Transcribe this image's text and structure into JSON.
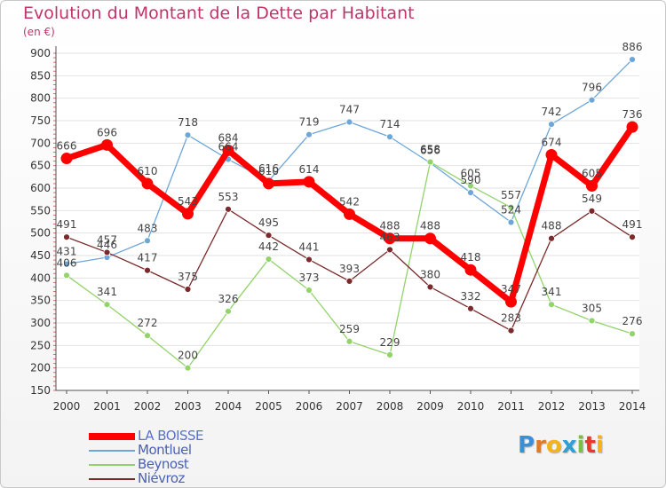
{
  "header": {
    "title": "Evolution du Montant de la Dette par Habitant",
    "unit": "(en €)"
  },
  "logo": {
    "letters": [
      "P",
      "r",
      "o",
      "x",
      "i",
      "t",
      "i"
    ],
    "colors": [
      "#3d8fd4",
      "#e07b24",
      "#f2b418",
      "#2f9fd8",
      "#7bc043",
      "#e7392d",
      "#f2b418"
    ]
  },
  "chart_data": {
    "type": "line",
    "title": "Evolution du Montant de la Dette par Habitant",
    "ylabel": "(en €)",
    "xlabel": "",
    "x": [
      "2000",
      "2001",
      "2002",
      "2003",
      "2004",
      "2005",
      "2006",
      "2007",
      "2008",
      "2009",
      "2010",
      "2011",
      "2012",
      "2013",
      "2014"
    ],
    "ylim": [
      150,
      900
    ],
    "yticks": [
      150,
      200,
      250,
      300,
      350,
      400,
      450,
      500,
      550,
      600,
      650,
      700,
      750,
      800,
      850,
      900
    ],
    "grid": "horizontal",
    "legend": "bottom-left",
    "series": [
      {
        "name": "LA BOISSE",
        "color": "#ff0000",
        "values": [
          666,
          696,
          610,
          543,
          684,
          610,
          614,
          542,
          488,
          488,
          418,
          347,
          674,
          605,
          736
        ]
      },
      {
        "name": "Montluel",
        "color": "#6fa6d8",
        "values": [
          431,
          446,
          483,
          718,
          664,
          616,
          719,
          747,
          714,
          656,
          590,
          524,
          742,
          796,
          886
        ]
      },
      {
        "name": "Beynost",
        "color": "#93d36b",
        "values": [
          406,
          341,
          272,
          200,
          326,
          442,
          373,
          259,
          229,
          658,
          605,
          557,
          341,
          305,
          276
        ]
      },
      {
        "name": "Niévroz",
        "color": "#7a2a2a",
        "values": [
          491,
          457,
          417,
          375,
          553,
          495,
          441,
          393,
          463,
          380,
          332,
          283,
          488,
          549,
          491
        ]
      }
    ]
  }
}
